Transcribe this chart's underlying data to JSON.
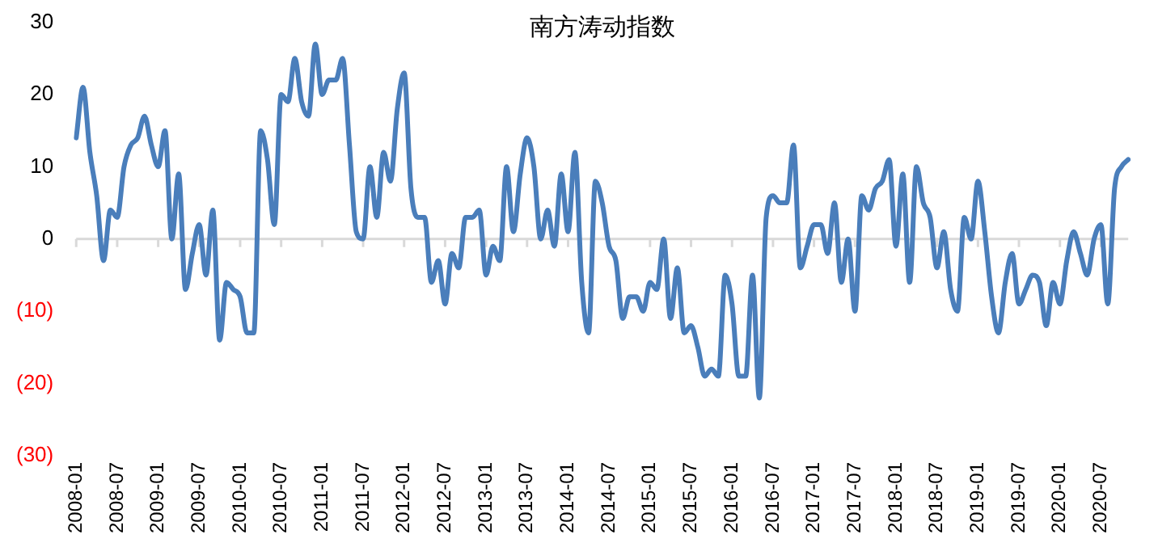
{
  "chart_data": {
    "type": "line",
    "title": "南方涛动指数",
    "categories": [
      "2008-01",
      null,
      null,
      null,
      null,
      null,
      "2008-07",
      null,
      null,
      null,
      null,
      null,
      "2009-01",
      null,
      null,
      null,
      null,
      null,
      "2009-07",
      null,
      null,
      null,
      null,
      null,
      "2010-01",
      null,
      null,
      null,
      null,
      null,
      "2010-07",
      null,
      null,
      null,
      null,
      null,
      "2011-01",
      null,
      null,
      null,
      null,
      null,
      "2011-07",
      null,
      null,
      null,
      null,
      null,
      "2012-01",
      null,
      null,
      null,
      null,
      null,
      "2012-07",
      null,
      null,
      null,
      null,
      null,
      "2013-01",
      null,
      null,
      null,
      null,
      null,
      "2013-07",
      null,
      null,
      null,
      null,
      null,
      "2014-01",
      null,
      null,
      null,
      null,
      null,
      "2014-07",
      null,
      null,
      null,
      null,
      null,
      "2015-01",
      null,
      null,
      null,
      null,
      null,
      "2015-07",
      null,
      null,
      null,
      null,
      null,
      "2016-01",
      null,
      null,
      null,
      null,
      null,
      "2016-07",
      null,
      null,
      null,
      null,
      null,
      "2017-01",
      null,
      null,
      null,
      null,
      null,
      "2017-07",
      null,
      null,
      null,
      null,
      null,
      "2018-01",
      null,
      null,
      null,
      null,
      null,
      "2018-07",
      null,
      null,
      null,
      null,
      null,
      "2019-01",
      null,
      null,
      null,
      null,
      null,
      "2019-07",
      null,
      null,
      null,
      null,
      null,
      "2020-01",
      null,
      null,
      null,
      null,
      null,
      "2020-07",
      null,
      null,
      null,
      null
    ],
    "series": [
      {
        "color": "#4a7ebb",
        "values": [
          14,
          21,
          12,
          6,
          -3,
          4,
          3,
          10,
          13,
          14,
          17,
          13,
          10,
          15,
          0,
          9,
          -7,
          -2,
          2,
          -5,
          4,
          -14,
          -6,
          -7,
          -8,
          -13,
          -13,
          15,
          11,
          2,
          20,
          19,
          25,
          19,
          17,
          27,
          20,
          22,
          22,
          25,
          13,
          1,
          0,
          10,
          3,
          12,
          8,
          18,
          23,
          7,
          3,
          3,
          -6,
          -3,
          -9,
          -2,
          -4,
          3,
          3,
          4,
          -5,
          -1,
          -3,
          10,
          1,
          9,
          14,
          10,
          0,
          4,
          -1,
          9,
          1,
          12,
          -6,
          -13,
          8,
          5,
          -1,
          -3,
          -11,
          -8,
          -8,
          -10,
          -6,
          -7,
          0,
          -11,
          -4,
          -13,
          -12,
          -15,
          -19,
          -18,
          -19,
          -5,
          -9,
          -19,
          -19,
          -5,
          -22,
          3,
          6,
          5,
          5,
          13,
          -4,
          -1,
          2,
          2,
          -2,
          5,
          -6,
          0,
          -10,
          6,
          4,
          7,
          8,
          11,
          -1,
          9,
          -6,
          10,
          5,
          3,
          -4,
          1,
          -7,
          -10,
          3,
          0,
          8,
          1,
          -8,
          -13,
          -6,
          -2,
          -9,
          -7,
          -5,
          -6,
          -12,
          -6,
          -9,
          -3,
          1,
          -2,
          -5,
          0,
          2,
          -9,
          7,
          10,
          11
        ]
      }
    ],
    "ylim": [
      -30,
      30
    ],
    "yticks": [
      {
        "value": 30,
        "label": "30"
      },
      {
        "value": 20,
        "label": "20"
      },
      {
        "value": 10,
        "label": "10"
      },
      {
        "value": 0,
        "label": "0"
      },
      {
        "value": -10,
        "label": "(10)"
      },
      {
        "value": -20,
        "label": "(20)"
      },
      {
        "value": -30,
        "label": "(30)"
      }
    ],
    "ref_lines": [
      {
        "axis": "y",
        "value": 0,
        "color": "#d9d9d9"
      }
    ],
    "grid": false,
    "legend": false,
    "marker": "none",
    "line_style": "solid"
  }
}
